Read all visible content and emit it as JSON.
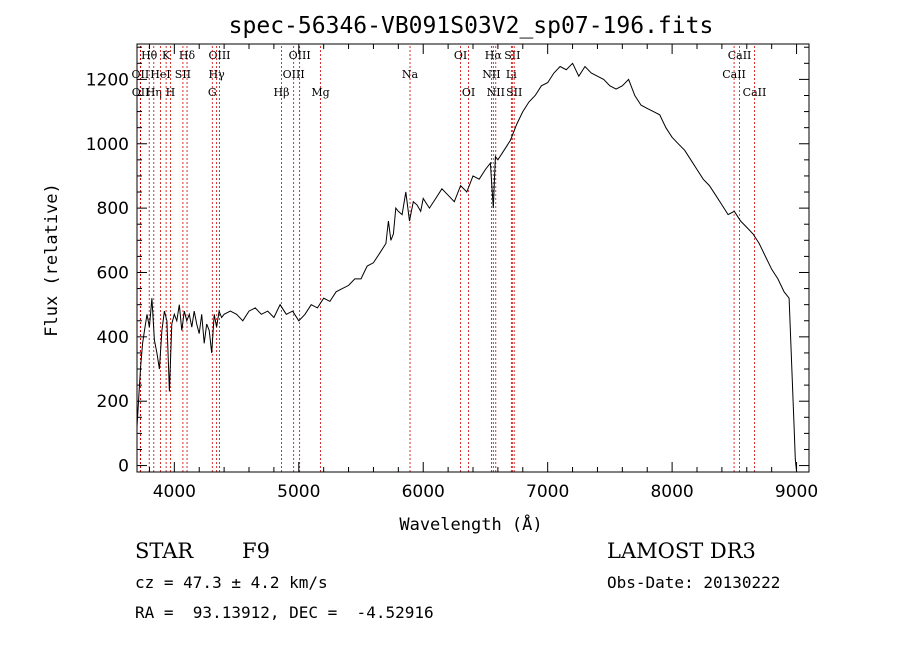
{
  "chart_data": {
    "type": "line",
    "title": "spec-56346-VB091S03V2_sp07-196.fits",
    "xlabel": "Wavelength (Å)",
    "ylabel": "Flux (relative)",
    "xlim": [
      3700,
      9100
    ],
    "ylim": [
      -20,
      1310
    ],
    "xticks": [
      {
        "value": 4000,
        "label": "4000"
      },
      {
        "value": 5000,
        "label": "5000"
      },
      {
        "value": 6000,
        "label": "6000"
      },
      {
        "value": 7000,
        "label": "7000"
      },
      {
        "value": 8000,
        "label": "8000"
      },
      {
        "value": 9000,
        "label": "9000"
      }
    ],
    "yticks": [
      {
        "value": 0,
        "label": "0"
      },
      {
        "value": 200,
        "label": "200"
      },
      {
        "value": 400,
        "label": "400"
      },
      {
        "value": 600,
        "label": "600"
      },
      {
        "value": 800,
        "label": "800"
      },
      {
        "value": 1000,
        "label": "1000"
      },
      {
        "value": 1200,
        "label": "1200"
      }
    ],
    "grid": false,
    "line_color": "#000000",
    "marker_color": "#cc0000",
    "series": [
      {
        "wavelength": [
          3700,
          3715,
          3730,
          3745,
          3760,
          3780,
          3800,
          3820,
          3840,
          3860,
          3880,
          3900,
          3920,
          3940,
          3960,
          3980,
          4000,
          4020,
          4040,
          4060,
          4080,
          4100,
          4120,
          4140,
          4160,
          4180,
          4200,
          4220,
          4240,
          4260,
          4280,
          4300,
          4320,
          4340,
          4360,
          4380,
          4400,
          4450,
          4500,
          4550,
          4600,
          4650,
          4700,
          4750,
          4800,
          4850,
          4900,
          4950,
          5000,
          5050,
          5100,
          5150,
          5200,
          5250,
          5300,
          5350,
          5400,
          5450,
          5500,
          5550,
          5600,
          5650,
          5700,
          5720,
          5740,
          5760,
          5780,
          5800,
          5830,
          5860,
          5890,
          5920,
          5950,
          5980,
          6000,
          6050,
          6100,
          6150,
          6200,
          6250,
          6300,
          6350,
          6400,
          6450,
          6500,
          6540,
          6563,
          6580,
          6600,
          6650,
          6700,
          6750,
          6800,
          6850,
          6900,
          6950,
          7000,
          7050,
          7100,
          7150,
          7200,
          7250,
          7300,
          7350,
          7400,
          7450,
          7500,
          7550,
          7600,
          7650,
          7700,
          7750,
          7800,
          7850,
          7900,
          7950,
          8000,
          8050,
          8100,
          8150,
          8200,
          8250,
          8300,
          8350,
          8400,
          8450,
          8500,
          8550,
          8600,
          8650,
          8700,
          8750,
          8800,
          8850,
          8900,
          8940,
          8960,
          8980,
          8990,
          9000,
          9005
        ],
        "flux": [
          120,
          220,
          310,
          380,
          420,
          470,
          430,
          520,
          390,
          350,
          300,
          420,
          480,
          450,
          230,
          440,
          470,
          450,
          500,
          420,
          480,
          450,
          470,
          430,
          480,
          440,
          410,
          470,
          380,
          440,
          420,
          350,
          470,
          430,
          480,
          460,
          470,
          480,
          470,
          450,
          480,
          490,
          470,
          480,
          460,
          500,
          470,
          480,
          450,
          470,
          500,
          490,
          520,
          510,
          540,
          550,
          560,
          580,
          580,
          620,
          630,
          660,
          690,
          760,
          700,
          720,
          800,
          790,
          780,
          850,
          760,
          820,
          810,
          790,
          830,
          800,
          830,
          860,
          840,
          820,
          870,
          850,
          900,
          890,
          920,
          940,
          800,
          960,
          950,
          980,
          1010,
          1060,
          1100,
          1130,
          1150,
          1180,
          1190,
          1220,
          1240,
          1230,
          1250,
          1210,
          1240,
          1220,
          1210,
          1200,
          1180,
          1170,
          1180,
          1200,
          1150,
          1120,
          1110,
          1100,
          1090,
          1050,
          1020,
          1000,
          980,
          950,
          920,
          890,
          870,
          840,
          810,
          780,
          790,
          760,
          740,
          720,
          690,
          650,
          610,
          580,
          540,
          520,
          320,
          120,
          20,
          -20,
          -20
        ]
      }
    ],
    "lines": [
      {
        "label": "Hθ",
        "wl": 3798,
        "row": 0
      },
      {
        "label": "OII",
        "wl": 3727,
        "row": 1
      },
      {
        "label": "OII",
        "wl": 3729,
        "row": 2
      },
      {
        "label": "Hη",
        "wl": 3835,
        "row": 2
      },
      {
        "label": "K",
        "wl": 3934,
        "row": 0
      },
      {
        "label": "HeI",
        "wl": 3889,
        "row": 1
      },
      {
        "label": "H",
        "wl": 3969,
        "row": 2
      },
      {
        "label": "Hδ",
        "wl": 4102,
        "row": 0
      },
      {
        "label": "SII",
        "wl": 4069,
        "row": 1
      },
      {
        "label": "OIII",
        "wl": 4363,
        "row": 0
      },
      {
        "label": "Hγ",
        "wl": 4340,
        "row": 1
      },
      {
        "label": "G",
        "wl": 4305,
        "row": 2
      },
      {
        "label": "OIII",
        "wl": 5007,
        "row": 0
      },
      {
        "label": "OIII",
        "wl": 4959,
        "row": 1
      },
      {
        "label": "Hβ",
        "wl": 4861,
        "row": 2
      },
      {
        "label": "Mg",
        "wl": 5175,
        "row": 2
      },
      {
        "label": "Na",
        "wl": 5894,
        "row": 1
      },
      {
        "label": "OI",
        "wl": 6300,
        "row": 0
      },
      {
        "label": "OI",
        "wl": 6364,
        "row": 2
      },
      {
        "label": "Hα",
        "wl": 6563,
        "row": 0
      },
      {
        "label": "SII",
        "wl": 6716,
        "row": 0
      },
      {
        "label": "NII",
        "wl": 6548,
        "row": 1
      },
      {
        "label": "Li",
        "wl": 6708,
        "row": 1
      },
      {
        "label": "NII",
        "wl": 6583,
        "row": 2
      },
      {
        "label": "SII",
        "wl": 6731,
        "row": 2
      },
      {
        "label": "CaII",
        "wl": 8542,
        "row": 0
      },
      {
        "label": "CaII",
        "wl": 8498,
        "row": 1
      },
      {
        "label": "CaII",
        "wl": 8662,
        "row": 2
      }
    ]
  },
  "info": {
    "class": "STAR",
    "subclass": "F9",
    "survey": "LAMOST DR3",
    "cz": "cz = 47.3 ± 4.2 km/s",
    "obs_date": "Obs-Date: 20130222",
    "radec": "RA =  93.13912, DEC =  -4.52916"
  }
}
